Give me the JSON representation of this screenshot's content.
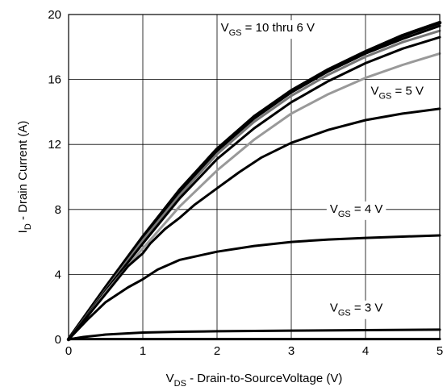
{
  "chart_data": {
    "type": "line",
    "xlabel": {
      "main": "V",
      "sub": "DS",
      "rest": " - Drain-to-SourceVoltage (V)"
    },
    "ylabel": {
      "main": "I",
      "sub": "D",
      "rest": " - Drain Current (A)"
    },
    "xlim": [
      0,
      5
    ],
    "ylim": [
      0,
      20
    ],
    "x_ticks": [
      "0",
      "1",
      "2",
      "3",
      "4",
      "5"
    ],
    "y_ticks": [
      "0",
      "4",
      "8",
      "12",
      "16",
      "20"
    ],
    "grid": true,
    "annotations": [
      {
        "main": "V",
        "sub": "GS",
        "rest": " = 10 thru 6 V",
        "x": 2.05,
        "y": 18.95
      },
      {
        "main": "V",
        "sub": "GS",
        "rest": " = 5 V",
        "x": 4.07,
        "y": 15.05
      },
      {
        "main": "V",
        "sub": "GS",
        "rest": " = 4 V",
        "x": 3.52,
        "y": 7.8
      },
      {
        "main": "V",
        "sub": "GS",
        "rest": " = 3 V",
        "x": 3.52,
        "y": 1.7
      }
    ],
    "series": [
      {
        "color": "#000000",
        "width": 4.5,
        "x": [
          0,
          0.25,
          0.5,
          1,
          1.5,
          2,
          2.5,
          3,
          3.5,
          4,
          4.5,
          5
        ],
        "y": [
          0,
          1.6,
          3.2,
          6.3,
          9.2,
          11.7,
          13.7,
          15.3,
          16.6,
          17.7,
          18.7,
          19.5
        ]
      },
      {
        "color": "#000000",
        "width": 3,
        "x": [
          0,
          0.25,
          0.5,
          1,
          1.5,
          2,
          2.5,
          3,
          3.5,
          4,
          4.5,
          5
        ],
        "y": [
          0,
          1.55,
          3.1,
          6.2,
          9.1,
          11.6,
          13.6,
          15.2,
          16.5,
          17.6,
          18.5,
          19.3
        ]
      },
      {
        "color": "#777777",
        "width": 3,
        "x": [
          0,
          0.25,
          0.5,
          1,
          1.5,
          2,
          2.5,
          3,
          3.5,
          4,
          4.5,
          5
        ],
        "y": [
          0,
          1.5,
          3.05,
          6.1,
          8.9,
          11.4,
          13.4,
          15.0,
          16.3,
          17.4,
          18.3,
          19.0
        ]
      },
      {
        "color": "#000000",
        "width": 3,
        "x": [
          0,
          0.25,
          0.5,
          1,
          1.5,
          2,
          2.5,
          3,
          3.5,
          4,
          4.5,
          5
        ],
        "y": [
          0,
          1.45,
          3.0,
          5.9,
          8.7,
          11.1,
          13.0,
          14.6,
          15.9,
          17.0,
          17.9,
          18.6
        ]
      },
      {
        "color": "#999999",
        "width": 3,
        "x": [
          0,
          0.25,
          0.5,
          1,
          1.5,
          2,
          2.5,
          3,
          3.5,
          4,
          4.5,
          5
        ],
        "y": [
          0,
          1.4,
          2.9,
          5.6,
          8.2,
          10.4,
          12.3,
          13.9,
          15.1,
          16.1,
          16.9,
          17.6
        ]
      },
      {
        "color": "#000000",
        "width": 3,
        "x": [
          0,
          0.25,
          0.5,
          0.8,
          1,
          1.1,
          1.3,
          1.5,
          1.7,
          2,
          2.3,
          2.6,
          3,
          3.5,
          4,
          4.5,
          5
        ],
        "y": [
          0,
          1.4,
          2.8,
          4.5,
          5.3,
          5.9,
          6.8,
          7.5,
          8.3,
          9.3,
          10.3,
          11.2,
          12.1,
          12.9,
          13.5,
          13.9,
          14.2
        ]
      },
      {
        "color": "#000000",
        "width": 3,
        "x": [
          0,
          0.25,
          0.5,
          0.8,
          1,
          1.2,
          1.5,
          2,
          2.5,
          3,
          3.5,
          4,
          4.5,
          5
        ],
        "y": [
          0,
          1.2,
          2.3,
          3.2,
          3.7,
          4.3,
          4.9,
          5.4,
          5.75,
          6.0,
          6.15,
          6.25,
          6.33,
          6.4
        ]
      },
      {
        "color": "#000000",
        "width": 3,
        "x": [
          0,
          0.2,
          0.5,
          1,
          1.5,
          2,
          3,
          4,
          5
        ],
        "y": [
          0,
          0.15,
          0.3,
          0.42,
          0.47,
          0.5,
          0.54,
          0.57,
          0.6
        ]
      },
      {
        "color": "#000000",
        "width": 3,
        "x": [
          0,
          5
        ],
        "y": [
          0.02,
          0.02
        ]
      }
    ]
  }
}
